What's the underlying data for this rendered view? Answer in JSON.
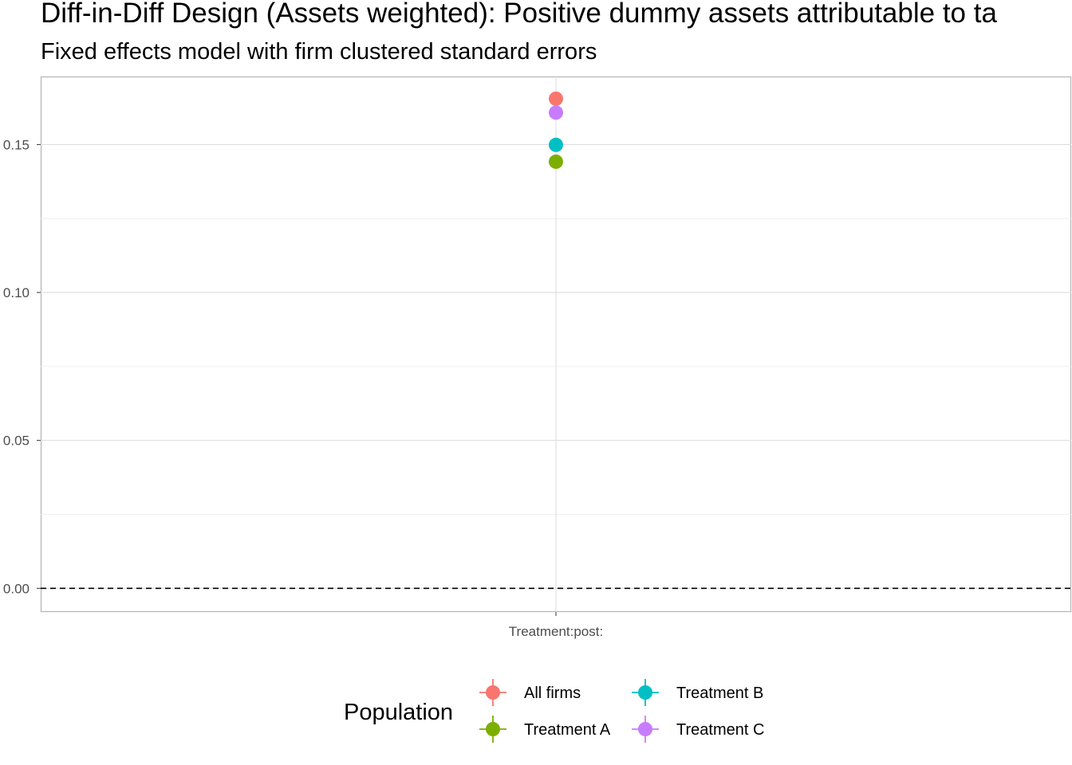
{
  "chart_data": {
    "type": "scatter",
    "title": "Diff-in-Diff Design (Assets weighted): Positive dummy assets attributable to ta",
    "subtitle": "Fixed effects model with firm clustered standard errors",
    "xlabel": "",
    "ylabel": "",
    "categories": [
      "Treatment:post:"
    ],
    "ylim": [
      -0.008,
      0.173
    ],
    "y_ticks": [
      0.0,
      0.05,
      0.1,
      0.15
    ],
    "y_tick_labels": [
      "0.00",
      "0.05",
      "0.10",
      "0.15"
    ],
    "grid": true,
    "reference_line": {
      "y": 0.0,
      "style": "dashed"
    },
    "legend": {
      "title": "Population",
      "position": "bottom",
      "columns": 2
    },
    "series": [
      {
        "name": "All firms",
        "color": "#F8766D",
        "values": [
          0.1655
        ]
      },
      {
        "name": "Treatment A",
        "color": "#7CAE00",
        "values": [
          0.1442
        ]
      },
      {
        "name": "Treatment B",
        "color": "#00BFC4",
        "values": [
          0.1499
        ]
      },
      {
        "name": "Treatment C",
        "color": "#C77CFF",
        "values": [
          0.1608
        ]
      }
    ]
  }
}
